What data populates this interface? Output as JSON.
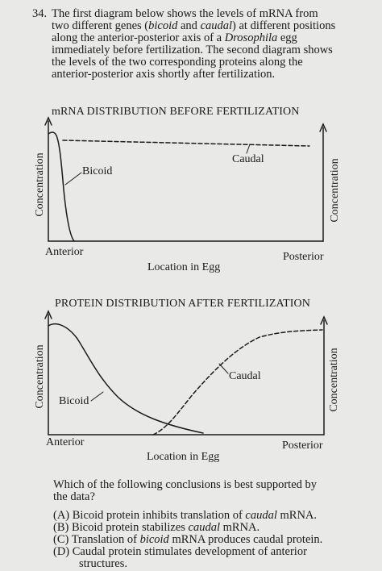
{
  "question": {
    "number": "34.",
    "intro_lines": [
      "The first diagram below shows the levels of mRNA from",
      "two different genes (bicoid and caudal) at different positions",
      "along the anterior-posterior axis of a Drosophila egg",
      "immediately before fertilization. The second diagram shows",
      "the levels of the two corresponding proteins along the",
      "anterior-posterior axis shortly after fertilization."
    ],
    "prompt_lines": [
      "Which of the following conclusions is best supported by",
      "the data?"
    ]
  },
  "diagram1": {
    "title": "mRNA DISTRIBUTION BEFORE FERTILIZATION",
    "y_label_left": "Concentration",
    "y_label_right": "Concentration",
    "anterior": "Anterior",
    "posterior": "Posterior",
    "x_label": "Location in Egg",
    "bicoid_label": "Bicoid",
    "caudal_label": "Caudal"
  },
  "diagram2": {
    "title": "PROTEIN DISTRIBUTION AFTER FERTILIZATION",
    "y_label_left": "Concentration",
    "y_label_right": "Concentration",
    "anterior": "Anterior",
    "posterior": "Posterior",
    "x_label": "Location in Egg",
    "bicoid_label": "Bicoid",
    "caudal_label": "Caudal"
  },
  "choices": [
    {
      "letter": "(A)",
      "text_lines": [
        "Bicoid protein inhibits translation of caudal mRNA."
      ]
    },
    {
      "letter": "(B)",
      "text_lines": [
        "Bicoid protein stabilizes caudal mRNA."
      ]
    },
    {
      "letter": "(C)",
      "text_lines": [
        "Translation of bicoid mRNA produces caudal protein."
      ]
    },
    {
      "letter": "(D)",
      "text_lines": [
        "Caudal protein stimulates development of anterior",
        "structures."
      ]
    }
  ],
  "colors": {
    "ink": "#1a1a1a",
    "paper": "#e9e9e7"
  }
}
